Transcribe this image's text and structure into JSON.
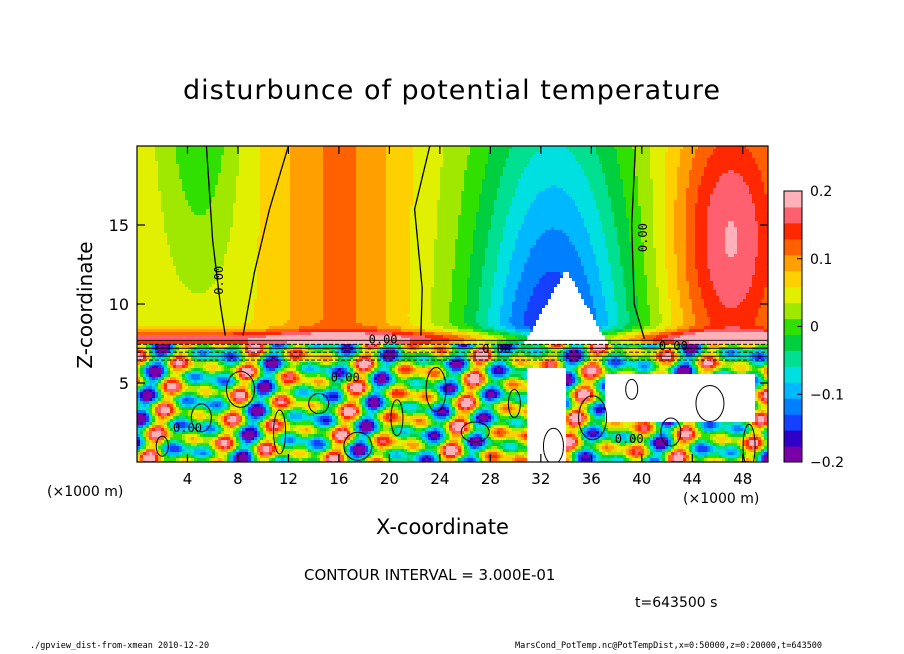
{
  "chart_data": {
    "type": "heatmap",
    "title": "disturbunce of potential temperature",
    "xlabel": "X-coordinate",
    "ylabel": "Z-coordinate",
    "x_unit_left": "(×1000 m)",
    "x_unit_right": "(×1000 m)",
    "xlim": [
      0,
      50
    ],
    "ylim": [
      0,
      20
    ],
    "x_ticks": [
      4,
      8,
      12,
      16,
      20,
      24,
      28,
      32,
      36,
      40,
      44,
      48
    ],
    "y_ticks": [
      5,
      10,
      15
    ],
    "colorbar": {
      "range": [
        -0.2,
        0.2
      ],
      "ticks": [
        {
          "value": 0.2,
          "label": "0.2"
        },
        {
          "value": 0.1,
          "label": "0.1"
        },
        {
          "value": 0,
          "label": "0"
        },
        {
          "value": -0.1,
          "label": "−0.1"
        },
        {
          "value": -0.2,
          "label": "−0.2"
        }
      ],
      "colors": [
        "#7a00a8",
        "#2e00c8",
        "#1540ff",
        "#0080ff",
        "#00b8ff",
        "#00e0e0",
        "#00e090",
        "#00d040",
        "#30e000",
        "#a0e800",
        "#e0f000",
        "#ffd000",
        "#ffa000",
        "#ff6000",
        "#ff2800",
        "#ff6070",
        "#ffb0b8"
      ]
    },
    "contour_labels": [
      "0.00",
      "0.00",
      "0.00",
      "0.00",
      "0.00",
      "0.00",
      "0.00",
      "0.00"
    ],
    "contour_interval": "CONTOUR INTERVAL = 3.000E-01",
    "time": "t=643500 s"
  },
  "footer": {
    "left": "./gpview_dist-from-xmean  2010-12-20",
    "right": "MarsCond_PotTemp.nc@PotTempDist,x=0:50000,z=0:20000,t=643500"
  }
}
